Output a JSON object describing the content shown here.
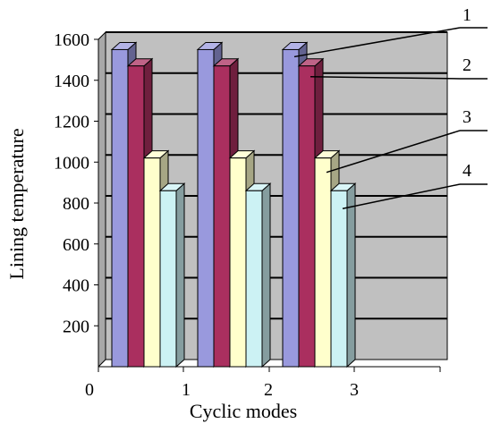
{
  "chart_data": {
    "type": "bar",
    "style": "3d-clustered-columns",
    "categories": [
      "1",
      "2",
      "3"
    ],
    "x_tick_labels": [
      "0",
      "1",
      "2",
      "3"
    ],
    "series": [
      {
        "callout": "1",
        "values": [
          1550,
          1550,
          1550
        ],
        "color": "#9999dd"
      },
      {
        "callout": "2",
        "values": [
          1470,
          1470,
          1470
        ],
        "color": "#aa2f5f"
      },
      {
        "callout": "3",
        "values": [
          1020,
          1020,
          1020
        ],
        "color": "#ffffcc"
      },
      {
        "callout": "4",
        "values": [
          860,
          860,
          860
        ],
        "color": "#ccf2f4"
      }
    ],
    "xlabel": "Cyclic modes",
    "ylabel": "Lining temperature",
    "ylim": [
      0,
      1600
    ],
    "yticks": [
      "200",
      "400",
      "600",
      "800",
      "1000",
      "1200",
      "1400",
      "1600"
    ],
    "grid": true,
    "plot_background": "#c0c0c0"
  }
}
